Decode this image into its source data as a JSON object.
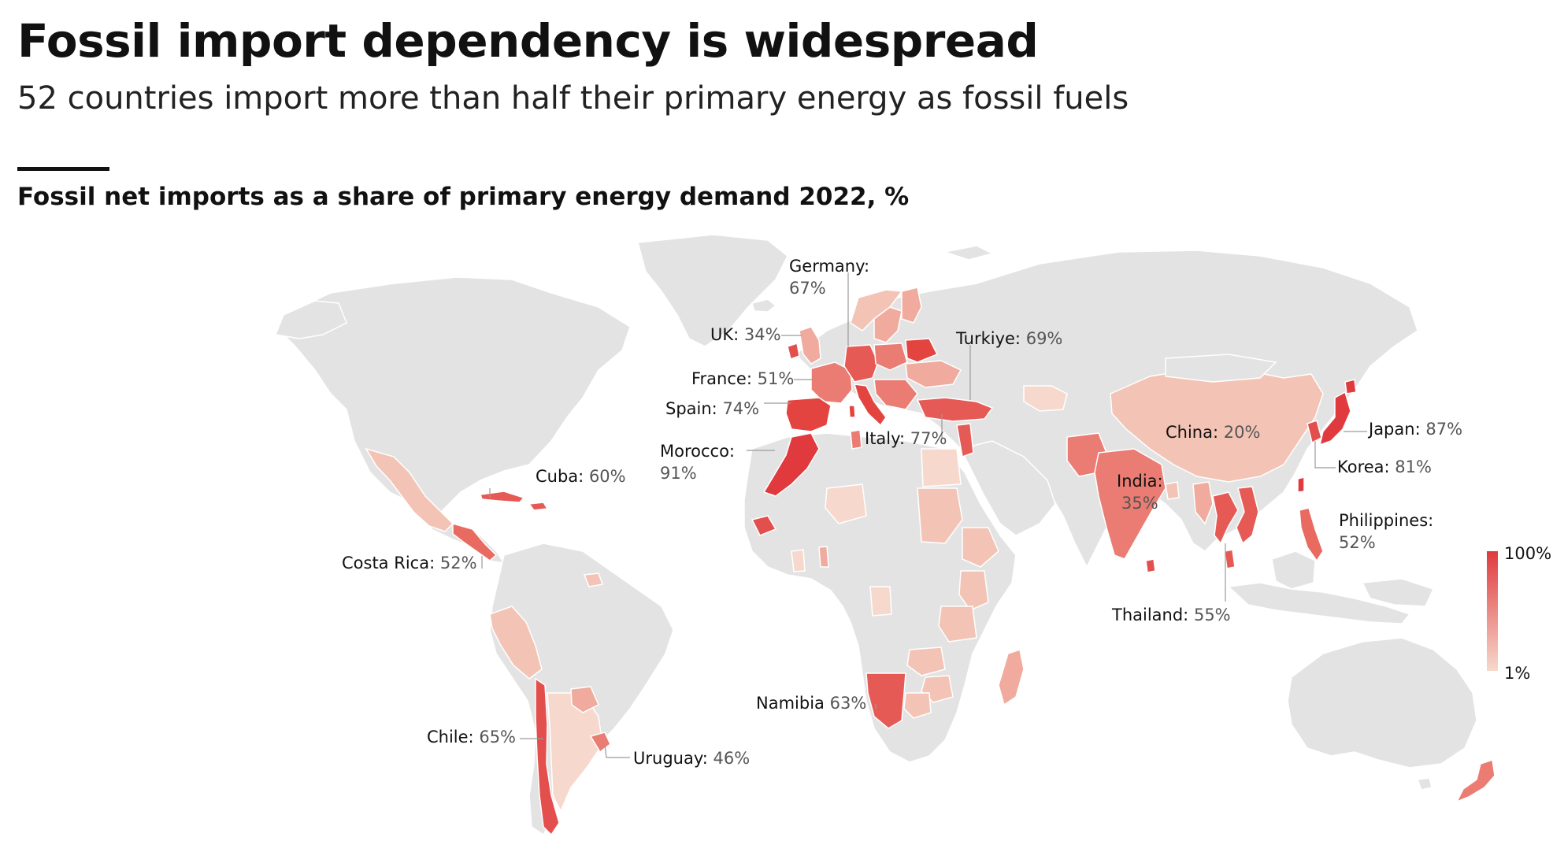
{
  "header": {
    "title": "Fossil import dependency is widespread",
    "subtitle": "52 countries import more than half their primary energy as fossil fuels",
    "chart_title": "Fossil net imports as a share of primary energy demand 2022, %"
  },
  "colors": {
    "land": "#e3e3e3",
    "border": "#ffffff",
    "scale_low": "#f6d9cc",
    "scale_high": "#e03a3e"
  },
  "legend": {
    "max_label": "100%",
    "min_label": "1%"
  },
  "chart_data": {
    "type": "choropleth",
    "metric": "Fossil net imports as a share of primary energy demand 2022, %",
    "scale": {
      "min": 1,
      "max": 100
    },
    "labelled_countries": [
      {
        "name": "Germany",
        "label": "Germany:",
        "value": 67,
        "value_label": "67%"
      },
      {
        "name": "UK",
        "label": "UK:",
        "value": 34,
        "value_label": "34%"
      },
      {
        "name": "France",
        "label": "France:",
        "value": 51,
        "value_label": "51%"
      },
      {
        "name": "Spain",
        "label": "Spain:",
        "value": 74,
        "value_label": "74%"
      },
      {
        "name": "Morocco",
        "label": "Morocco:",
        "value": 91,
        "value_label": "91%"
      },
      {
        "name": "Italy",
        "label": "Italy:",
        "value": 77,
        "value_label": "77%"
      },
      {
        "name": "Turkiye",
        "label": "Turkiye:",
        "value": 69,
        "value_label": "69%"
      },
      {
        "name": "China",
        "label": "China:",
        "value": 20,
        "value_label": "20%"
      },
      {
        "name": "Japan",
        "label": "Japan:",
        "value": 87,
        "value_label": "87%"
      },
      {
        "name": "Korea",
        "label": "Korea:",
        "value": 81,
        "value_label": "81%"
      },
      {
        "name": "India",
        "label": "India:",
        "value": 35,
        "value_label": "35%"
      },
      {
        "name": "Philippines",
        "label": "Philippines:",
        "value": 52,
        "value_label": "52%"
      },
      {
        "name": "Thailand",
        "label": "Thailand:",
        "value": 55,
        "value_label": "55%"
      },
      {
        "name": "Cuba",
        "label": "Cuba:",
        "value": 60,
        "value_label": "60%"
      },
      {
        "name": "Costa Rica",
        "label": "Costa Rica:",
        "value": 52,
        "value_label": "52%"
      },
      {
        "name": "Namibia",
        "label": "Namibia",
        "value": 63,
        "value_label": "63%"
      },
      {
        "name": "Chile",
        "label": "Chile:",
        "value": 65,
        "value_label": "65%"
      },
      {
        "name": "Uruguay",
        "label": "Uruguay:",
        "value": 46,
        "value_label": "46%"
      }
    ]
  }
}
